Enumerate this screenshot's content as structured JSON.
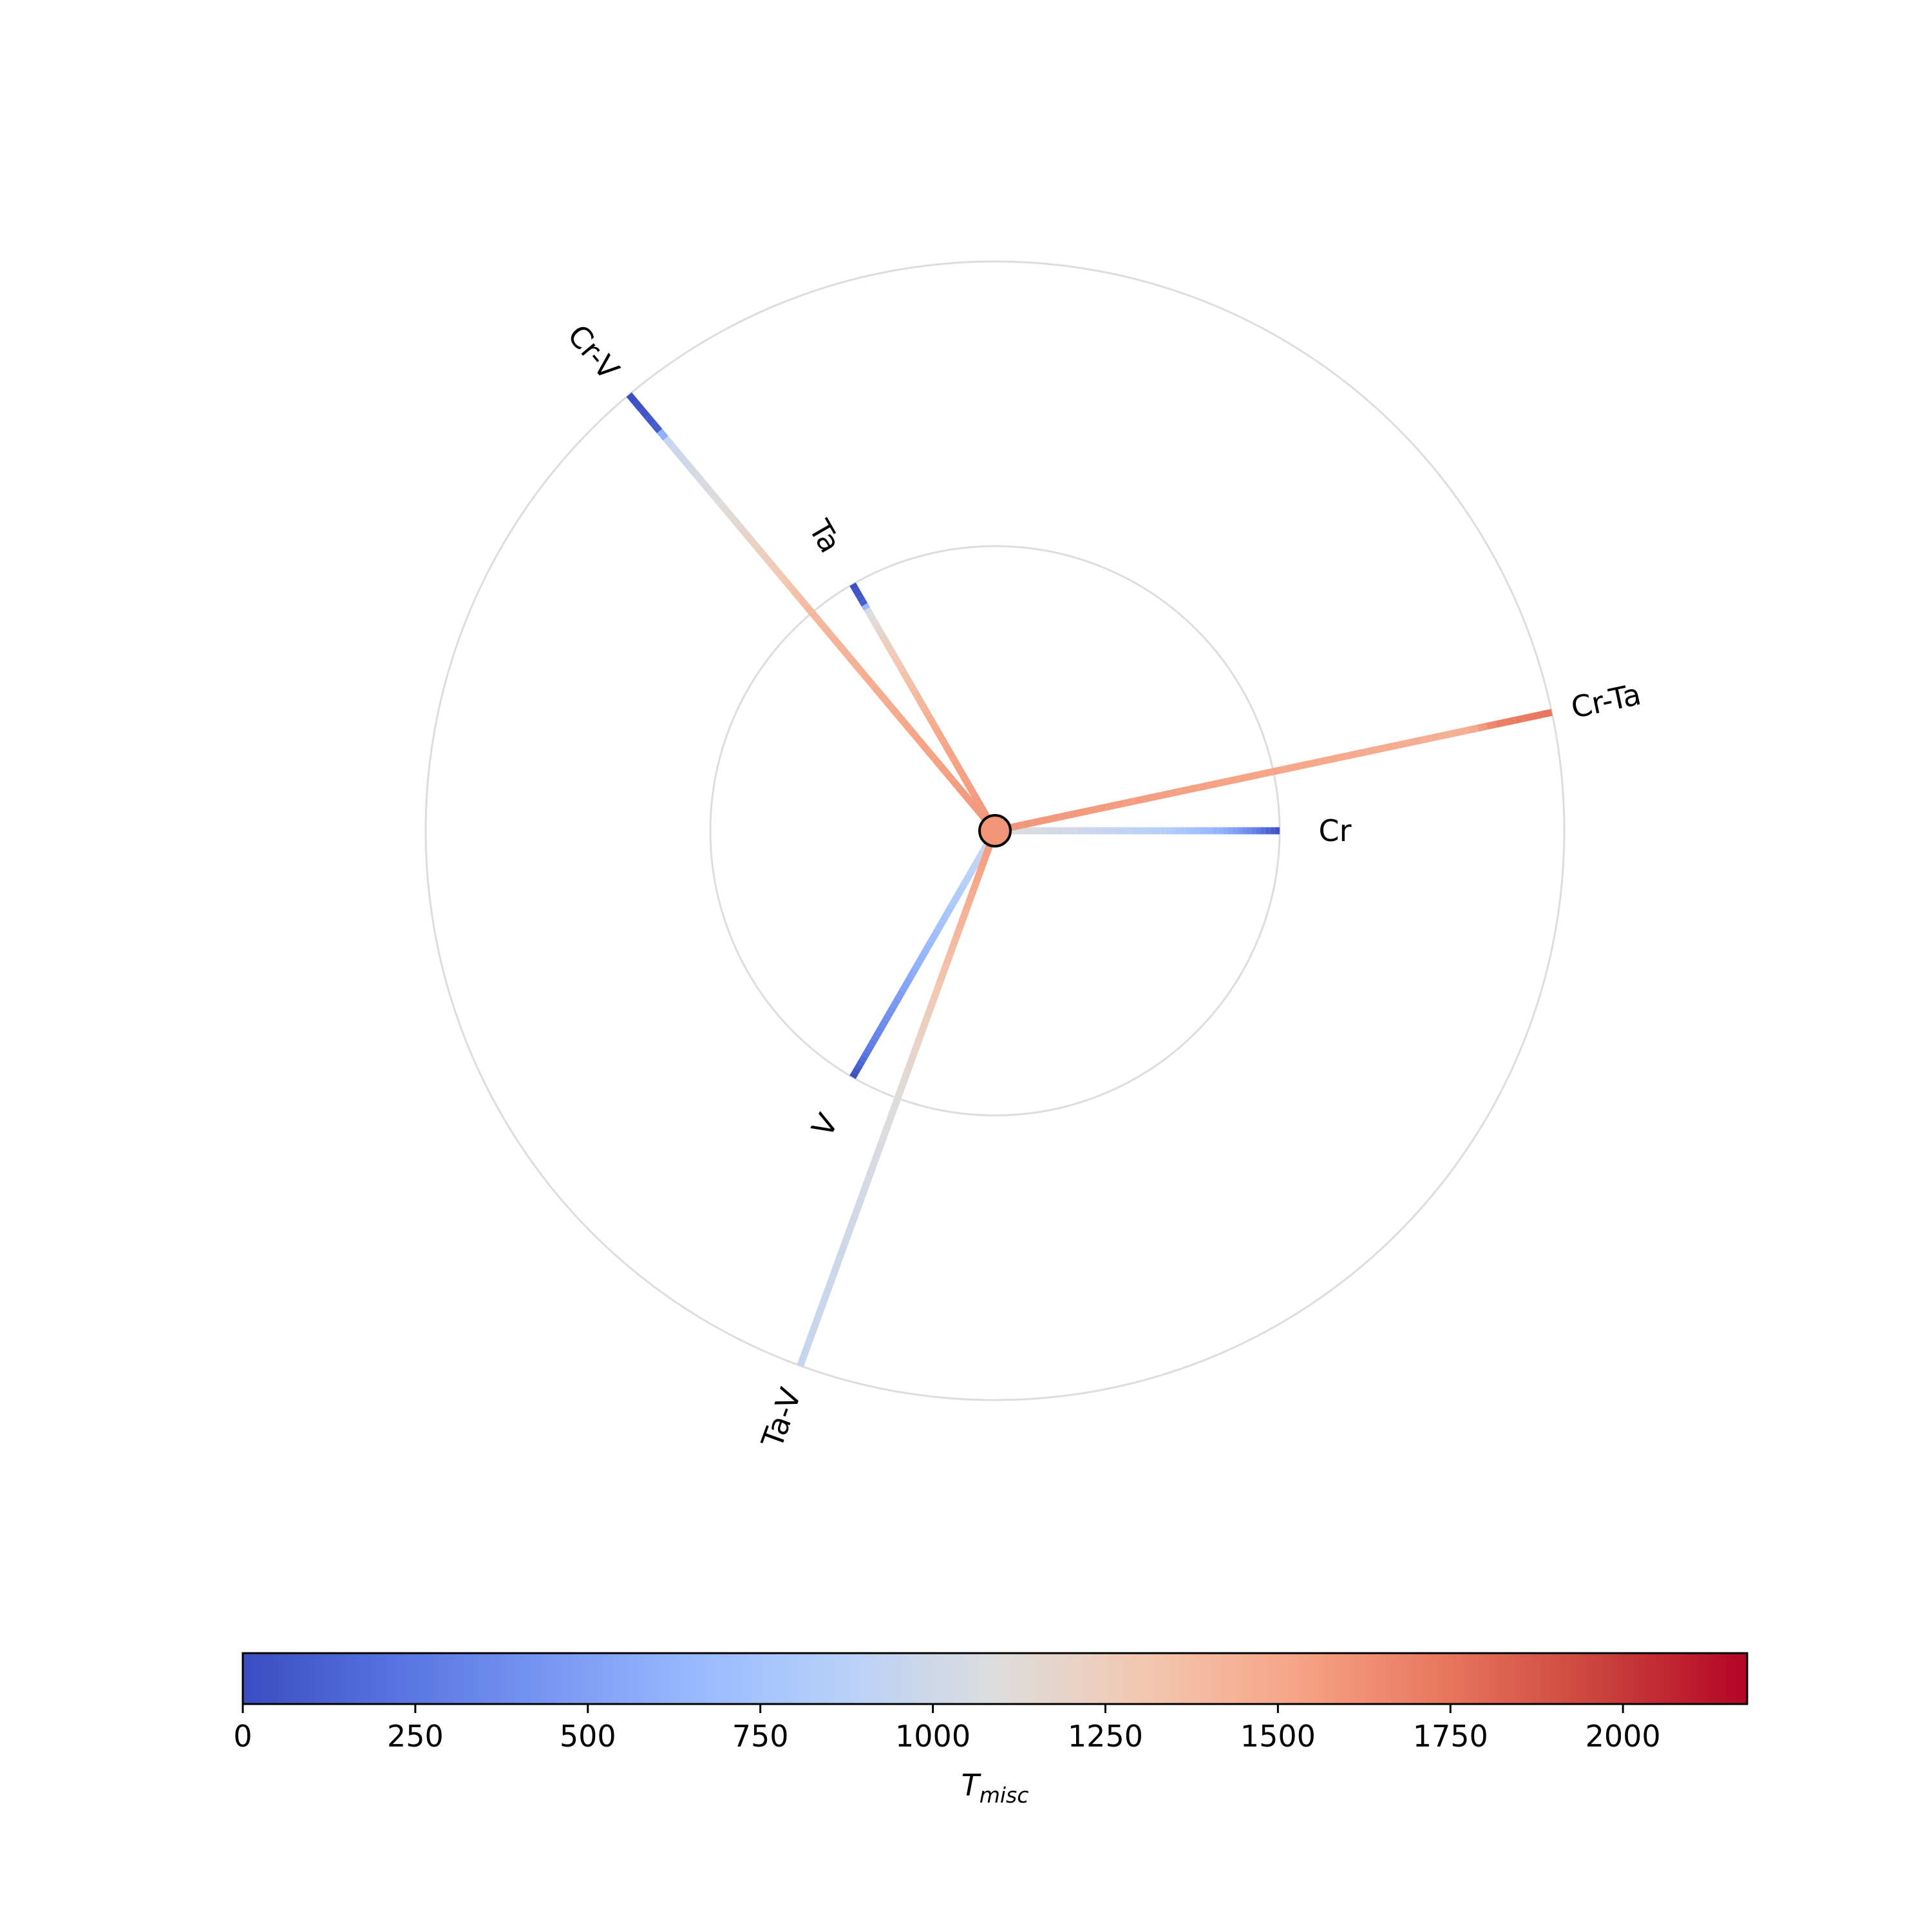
{
  "chart_data": {
    "type": "radial",
    "colorbar": {
      "label_main": "T",
      "label_sub": "misc",
      "range": [
        0,
        2180
      ],
      "colormap": "coolwarm",
      "ticks": [
        "0",
        "250",
        "500",
        "750",
        "1000",
        "1250",
        "1500",
        "1750",
        "2000"
      ],
      "tick_values": [
        0,
        250,
        500,
        750,
        1000,
        1250,
        1500,
        1750,
        2000
      ]
    },
    "rings": [
      1,
      2
    ],
    "center_marker": {
      "value": 1600
    },
    "spokes": [
      {
        "label": "Cr",
        "angle_deg": 0,
        "ring": 1,
        "profile": [
          [
            0,
            1100
          ],
          [
            0.3,
            1000
          ],
          [
            0.6,
            850
          ],
          [
            0.8,
            600
          ],
          [
            0.9,
            350
          ],
          [
            1.0,
            0
          ]
        ]
      },
      {
        "label": "Cr-Ta",
        "angle_deg": 12,
        "ring": 2,
        "profile": [
          [
            0,
            1600
          ],
          [
            0.3,
            1550
          ],
          [
            0.6,
            1500
          ],
          [
            0.85,
            1450
          ],
          [
            0.9,
            1700
          ],
          [
            1.0,
            1750
          ]
        ]
      },
      {
        "label": "Ta",
        "angle_deg": 120,
        "ring": 1,
        "profile": [
          [
            0,
            1600
          ],
          [
            0.4,
            1500
          ],
          [
            0.75,
            1250
          ],
          [
            0.9,
            1050
          ],
          [
            0.92,
            100
          ],
          [
            1.0,
            0
          ]
        ]
      },
      {
        "label": "Cr-V",
        "angle_deg": 130,
        "ring": 2,
        "profile": [
          [
            0,
            1600
          ],
          [
            0.5,
            1400
          ],
          [
            0.7,
            1150
          ],
          [
            0.9,
            950
          ],
          [
            0.92,
            100
          ],
          [
            1.0,
            0
          ]
        ]
      },
      {
        "label": "V",
        "angle_deg": 240,
        "ring": 1,
        "profile": [
          [
            0,
            1000
          ],
          [
            0.3,
            800
          ],
          [
            0.55,
            600
          ],
          [
            0.75,
            400
          ],
          [
            0.9,
            250
          ],
          [
            1.0,
            0
          ]
        ]
      },
      {
        "label": "Ta-V",
        "angle_deg": 250,
        "ring": 2,
        "profile": [
          [
            0,
            1600
          ],
          [
            0.25,
            1350
          ],
          [
            0.5,
            1100
          ],
          [
            0.75,
            1000
          ],
          [
            1.0,
            950
          ]
        ]
      }
    ]
  }
}
